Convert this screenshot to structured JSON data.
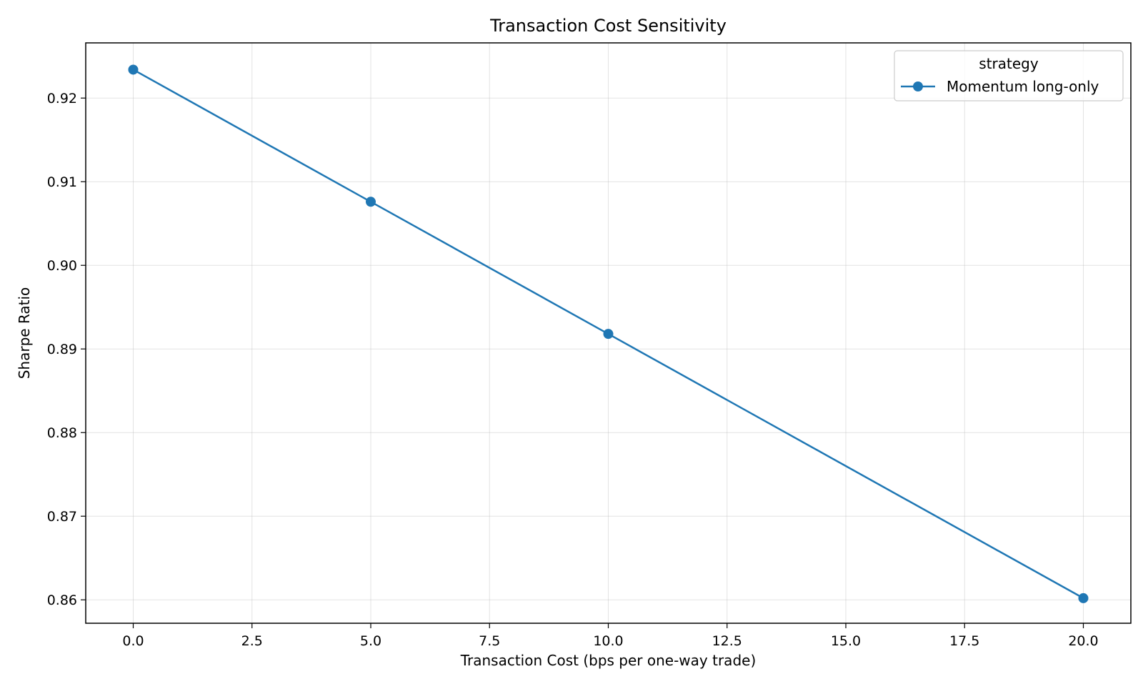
{
  "chart_data": {
    "type": "line",
    "title": "Transaction Cost Sensitivity",
    "xlabel": "Transaction Cost (bps per one-way trade)",
    "ylabel": "Sharpe Ratio",
    "xlim": [
      -1.0,
      21.0
    ],
    "ylim": [
      0.8572,
      0.9266
    ],
    "x_ticks": [
      0.0,
      2.5,
      5.0,
      7.5,
      10.0,
      12.5,
      15.0,
      17.5,
      20.0
    ],
    "x_tick_labels": [
      "0.0",
      "2.5",
      "5.0",
      "7.5",
      "10.0",
      "12.5",
      "15.0",
      "17.5",
      "20.0"
    ],
    "y_ticks": [
      0.86,
      0.87,
      0.88,
      0.89,
      0.9,
      0.91,
      0.92
    ],
    "y_tick_labels": [
      "0.86",
      "0.87",
      "0.88",
      "0.89",
      "0.90",
      "0.91",
      "0.92"
    ],
    "grid": true,
    "legend": {
      "title": "strategy",
      "placement": "top-right"
    },
    "series": [
      {
        "name": "Momentum long-only",
        "color": "#1f77b4",
        "marker": "circle",
        "x": [
          0,
          5,
          10,
          20
        ],
        "y": [
          0.9234,
          0.9076,
          0.8918,
          0.8602
        ]
      }
    ]
  }
}
